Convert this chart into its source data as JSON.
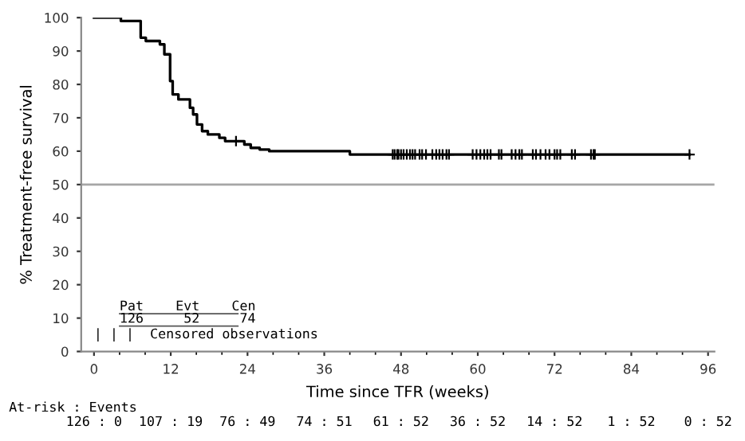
{
  "chart_data": {
    "type": "step",
    "xlabel": "Time since TFR (weeks)",
    "ylabel": "% Treatment-free survival",
    "xlim": [
      -2,
      97
    ],
    "xticks": [
      0,
      12,
      24,
      36,
      48,
      60,
      72,
      84,
      96
    ],
    "ylim": [
      0,
      100
    ],
    "yticks": [
      0,
      10,
      20,
      30,
      40,
      50,
      60,
      70,
      80,
      90,
      100
    ],
    "grid": false,
    "legend": false,
    "series": [
      {
        "color": "#000000",
        "marker": "none",
        "line_style": "solid",
        "x": [
          0,
          4.2,
          7.3,
          8.1,
          10.3,
          11,
          11.9,
          12.3,
          13.2,
          13.5,
          15,
          15.5,
          16.1,
          16.9,
          17.8,
          19.6,
          20.5,
          23.5,
          24.5,
          25.9,
          27.4,
          28.4,
          40,
          93.1
        ],
        "values": [
          100,
          99,
          94,
          93,
          92,
          89,
          81,
          77,
          75.5,
          75.5,
          73,
          71,
          68,
          66,
          65,
          64,
          63,
          62,
          61,
          60.5,
          60,
          60,
          59,
          59
        ]
      },
      {
        "type": "scatter",
        "color": "#000000",
        "marker": "cross",
        "x": [
          22.2,
          46.7,
          47.0,
          47.4,
          47.6,
          48.0,
          48.4,
          48.9,
          49.4,
          49.8,
          50.2,
          50.9,
          51.3,
          51.9,
          52.9,
          53.5,
          54.0,
          54.5,
          55.1,
          55.5,
          59.2,
          59.8,
          60.4,
          61.0,
          61.5,
          62.0,
          63.3,
          63.7,
          65.3,
          65.9,
          66.5,
          66.9,
          68.6,
          69.1,
          69.8,
          70.6,
          71.2,
          72.0,
          72.4,
          72.9,
          74.7,
          75.2,
          77.7,
          78.1,
          78.3,
          93.1
        ],
        "values": [
          63,
          59,
          59,
          59,
          59,
          59,
          59,
          59,
          59,
          59,
          59,
          59,
          59,
          59,
          59,
          59,
          59,
          59,
          59,
          59,
          59,
          59,
          59,
          59,
          59,
          59,
          59,
          59,
          59,
          59,
          59,
          59,
          59,
          59,
          59,
          59,
          59,
          59,
          59,
          59,
          59,
          59,
          59,
          59,
          59,
          59
        ]
      }
    ],
    "ref_lines": [
      {
        "axis": "y",
        "value": 50,
        "color": "#a6a6a6"
      }
    ],
    "annotations": [
      "Pat    Evt    Cen",
      "126     52     74",
      "| | |  Censored observations",
      "At-risk : Events",
      "126 : 0",
      "107 : 19",
      "76 : 49",
      "74 : 51",
      "61 : 52",
      "36 : 52",
      "14 : 52",
      "1 : 52",
      "0 : 52"
    ]
  }
}
